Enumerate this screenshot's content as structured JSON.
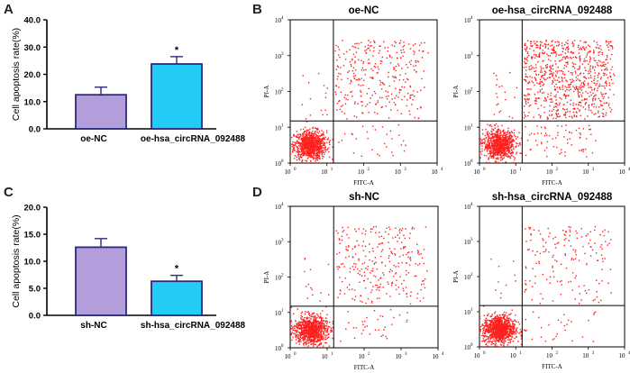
{
  "panels": {
    "A": "A",
    "B": "B",
    "C": "C",
    "D": "D"
  },
  "colors": {
    "nc_bar": "#b49ddb",
    "treat_bar": "#22ccf5",
    "bar_edge": "#2c2a7c",
    "dot": "#ff2020",
    "axis": "#000000"
  },
  "chart_data": [
    {
      "panel": "A",
      "type": "bar",
      "ylabel": "Cell apoptosis rate(%)",
      "categories": [
        "oe-NC",
        "oe-hsa_circRNA_092488"
      ],
      "values": [
        12.5,
        23.8
      ],
      "errors": [
        2.8,
        2.7
      ],
      "significance": [
        "",
        "*"
      ],
      "yticks": [
        "0.0",
        "10.0",
        "20.0",
        "30.0",
        "40.0"
      ],
      "ylim": [
        0,
        40
      ]
    },
    {
      "panel": "C",
      "type": "bar",
      "ylabel": "Cell apoptosis rate(%)",
      "categories": [
        "sh-NC",
        "sh-hsa_circRNA_092488"
      ],
      "values": [
        12.6,
        6.3
      ],
      "errors": [
        1.6,
        1.1
      ],
      "significance": [
        "",
        "*"
      ],
      "yticks": [
        "0.0",
        "5.0",
        "10.0",
        "15.0",
        "20.0"
      ],
      "ylim": [
        0,
        20
      ]
    },
    {
      "panel": "B",
      "type": "scatter",
      "title": "oe-NC",
      "xlabel": "FITC-A",
      "ylabel": "PI-A",
      "log_axes": true,
      "xlim": [
        1,
        10000
      ],
      "ylim": [
        1,
        10000
      ],
      "gate_x": 15,
      "gate_y": 15,
      "ticks": [
        "10",
        "10",
        "10",
        "10",
        "10"
      ],
      "tick_exps": [
        "0",
        "1",
        "2",
        "3",
        "4"
      ],
      "populations": {
        "live": 900,
        "late": 320,
        "early": 30,
        "necrotic": 15
      }
    },
    {
      "panel": "B",
      "type": "scatter",
      "title": "oe-hsa_circRNA_092488",
      "xlabel": "FITC-A",
      "ylabel": "PI-A",
      "log_axes": true,
      "xlim": [
        1,
        10000
      ],
      "ylim": [
        1,
        10000
      ],
      "gate_x": 15,
      "gate_y": 15,
      "ticks": [
        "10",
        "10",
        "10",
        "10",
        "10"
      ],
      "tick_exps": [
        "0",
        "1",
        "2",
        "3",
        "4"
      ],
      "populations": {
        "live": 850,
        "late": 800,
        "early": 70,
        "necrotic": 20
      }
    },
    {
      "panel": "D",
      "type": "scatter",
      "title": "sh-NC",
      "xlabel": "FITC-A",
      "ylabel": "PI-A",
      "log_axes": true,
      "xlim": [
        1,
        10000
      ],
      "ylim": [
        1,
        10000
      ],
      "gate_x": 15,
      "gate_y": 15,
      "ticks": [
        "10",
        "10",
        "10",
        "10",
        "10"
      ],
      "tick_exps": [
        "0",
        "1",
        "2",
        "3",
        "4"
      ],
      "populations": {
        "live": 950,
        "late": 280,
        "early": 35,
        "necrotic": 15
      }
    },
    {
      "panel": "D",
      "type": "scatter",
      "title": "sh-hsa_circRNA_092488",
      "xlabel": "FITC-A",
      "ylabel": "PI-A",
      "log_axes": true,
      "xlim": [
        1,
        10000
      ],
      "ylim": [
        1,
        10000
      ],
      "gate_x": 15,
      "gate_y": 15,
      "ticks": [
        "10",
        "10",
        "10",
        "10",
        "10"
      ],
      "tick_exps": [
        "0",
        "1",
        "2",
        "3",
        "4"
      ],
      "populations": {
        "live": 1000,
        "late": 170,
        "early": 30,
        "necrotic": 10
      }
    }
  ]
}
